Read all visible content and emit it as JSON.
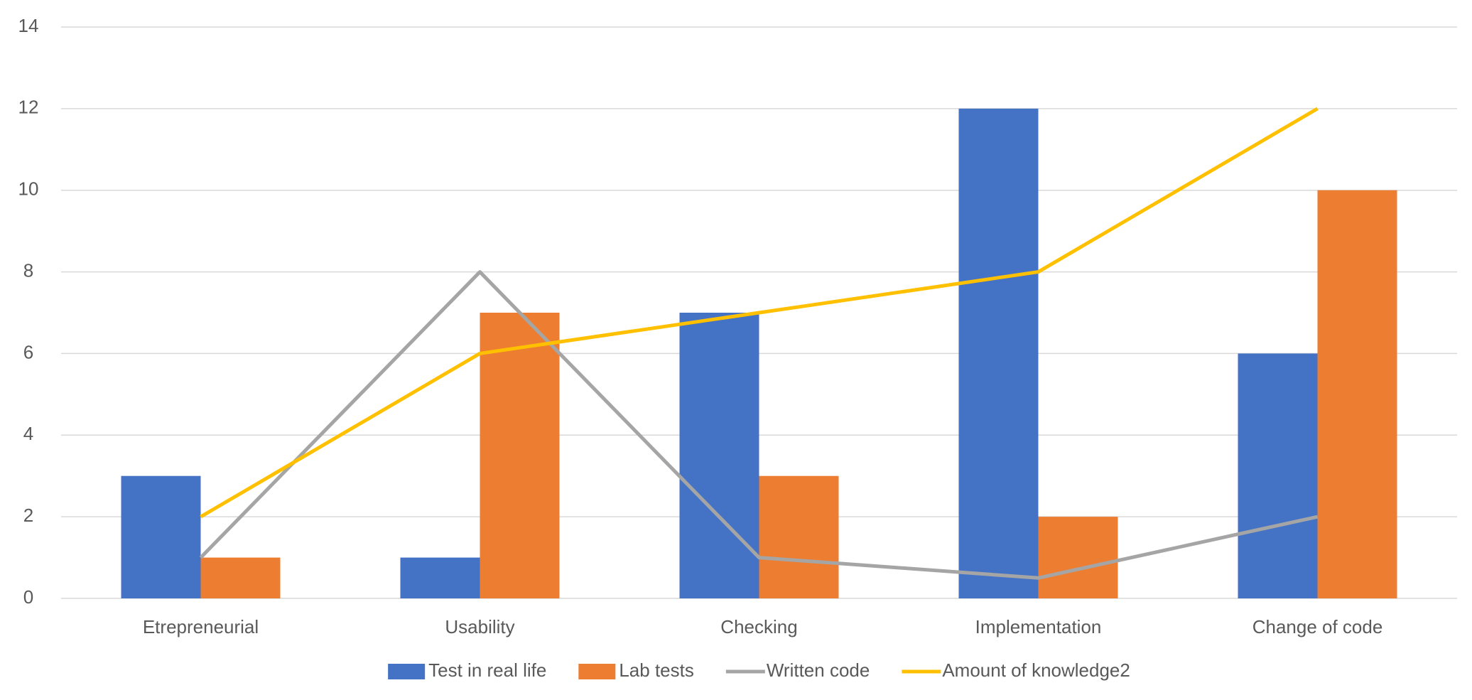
{
  "chart_data": {
    "type": "bar",
    "categories": [
      "Etrepreneurial",
      "Usability",
      "Checking",
      "Implementation",
      "Change of code"
    ],
    "series": [
      {
        "name": "Test in real life",
        "color": "#4472c4",
        "type": "bar",
        "values": [
          3,
          1,
          7,
          12,
          6
        ]
      },
      {
        "name": "Lab tests",
        "color": "#ed7d31",
        "type": "bar",
        "values": [
          1,
          7,
          3,
          2,
          10
        ]
      },
      {
        "name": "Written code",
        "color": "#a5a5a5",
        "type": "line",
        "values": [
          1,
          8,
          1,
          0.5,
          2
        ]
      },
      {
        "name": "Amount of knowledge2",
        "color": "#ffc000",
        "type": "line",
        "values": [
          2,
          6,
          7,
          8,
          12
        ]
      }
    ],
    "ylim": [
      0,
      14
    ],
    "yticks": [
      0,
      2,
      4,
      6,
      8,
      10,
      12,
      14
    ],
    "grid": true,
    "legend": "bottom"
  }
}
